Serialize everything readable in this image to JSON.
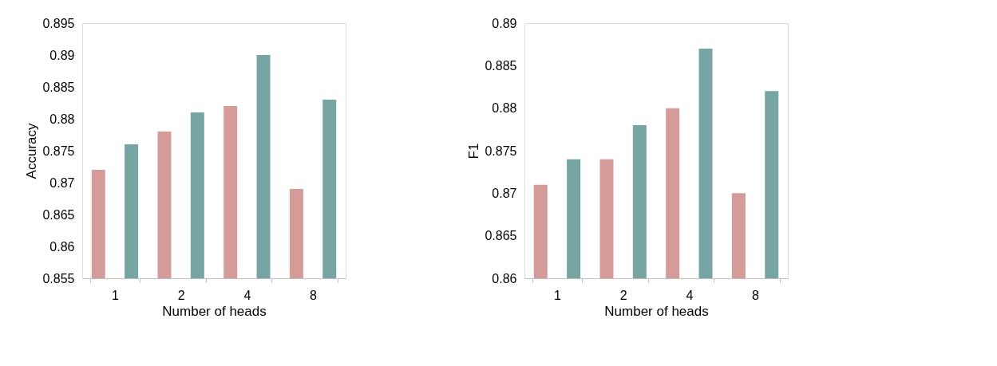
{
  "chart_data": [
    {
      "type": "bar",
      "xlabel": "Number  of   heads",
      "ylabel": "Accuracy",
      "categories": [
        "1",
        "2",
        "4",
        "8"
      ],
      "ylim": [
        0.855,
        0.895
      ],
      "yticks": [
        0.855,
        0.86,
        0.865,
        0.87,
        0.875,
        0.88,
        0.885,
        0.89,
        0.895
      ],
      "grid": false,
      "series": [
        {
          "color": "#d59b98",
          "values": [
            0.872,
            0.878,
            0.882,
            0.869
          ]
        },
        {
          "color": "#76a5a3",
          "values": [
            0.876,
            0.881,
            0.89,
            0.883
          ]
        }
      ]
    },
    {
      "type": "bar",
      "xlabel": "Number  of   heads",
      "ylabel": "F1",
      "categories": [
        "1",
        "2",
        "4",
        "8"
      ],
      "ylim": [
        0.86,
        0.89
      ],
      "yticks": [
        0.86,
        0.865,
        0.87,
        0.875,
        0.88,
        0.885,
        0.89
      ],
      "grid": false,
      "series": [
        {
          "color": "#d59b98",
          "values": [
            0.871,
            0.874,
            0.88,
            0.87
          ]
        },
        {
          "color": "#76a5a3",
          "values": [
            0.874,
            0.878,
            0.887,
            0.882
          ]
        }
      ]
    }
  ]
}
